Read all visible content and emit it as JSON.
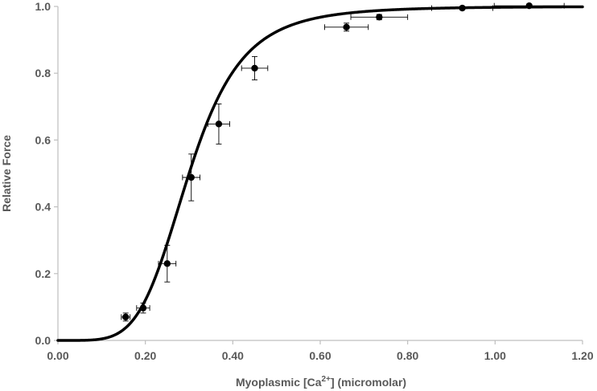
{
  "chart_data": {
    "type": "scatter",
    "xlabel_prefix": "Myoplasmic [Ca",
    "xlabel_sup": "2+",
    "xlabel_suffix": "] (micromolar)",
    "ylabel": "Relative Force",
    "xlim": [
      0,
      1.2
    ],
    "ylim": [
      0,
      1.0
    ],
    "x_ticks": [
      "0.00",
      "0.20",
      "0.40",
      "0.60",
      "0.80",
      "1.00",
      "1.20"
    ],
    "y_ticks": [
      "0.0",
      "0.2",
      "0.4",
      "0.6",
      "0.8",
      "1.0"
    ],
    "grid": false,
    "series": [
      {
        "type": "scatter",
        "points": [
          {
            "x": 0.155,
            "y": 0.07,
            "xerr": 0.01,
            "yerr": 0.012
          },
          {
            "x": 0.195,
            "y": 0.097,
            "xerr": 0.015,
            "yerr": 0.015
          },
          {
            "x": 0.25,
            "y": 0.23,
            "xerr": 0.02,
            "yerr": 0.055
          },
          {
            "x": 0.305,
            "y": 0.488,
            "xerr": 0.02,
            "yerr": 0.07
          },
          {
            "x": 0.368,
            "y": 0.648,
            "xerr": 0.025,
            "yerr": 0.06
          },
          {
            "x": 0.45,
            "y": 0.815,
            "xerr": 0.03,
            "yerr": 0.035
          },
          {
            "x": 0.66,
            "y": 0.938,
            "xerr": 0.05,
            "yerr": 0.012
          },
          {
            "x": 0.735,
            "y": 0.968,
            "xerr": 0.065,
            "yerr": 0.008
          },
          {
            "x": 0.925,
            "y": 0.995,
            "xerr": 0.07,
            "yerr": 0.005
          },
          {
            "x": 1.078,
            "y": 1.002,
            "xerr": 0.08,
            "yerr": 0.005
          }
        ]
      },
      {
        "type": "line",
        "model": "hill",
        "n": 4.9,
        "ec50": 0.3,
        "x_range": [
          0,
          1.2
        ]
      }
    ],
    "marker_color": "#000000",
    "line_color": "#000000",
    "axis_color": "#bfbfbf",
    "text_color": "#595959"
  }
}
